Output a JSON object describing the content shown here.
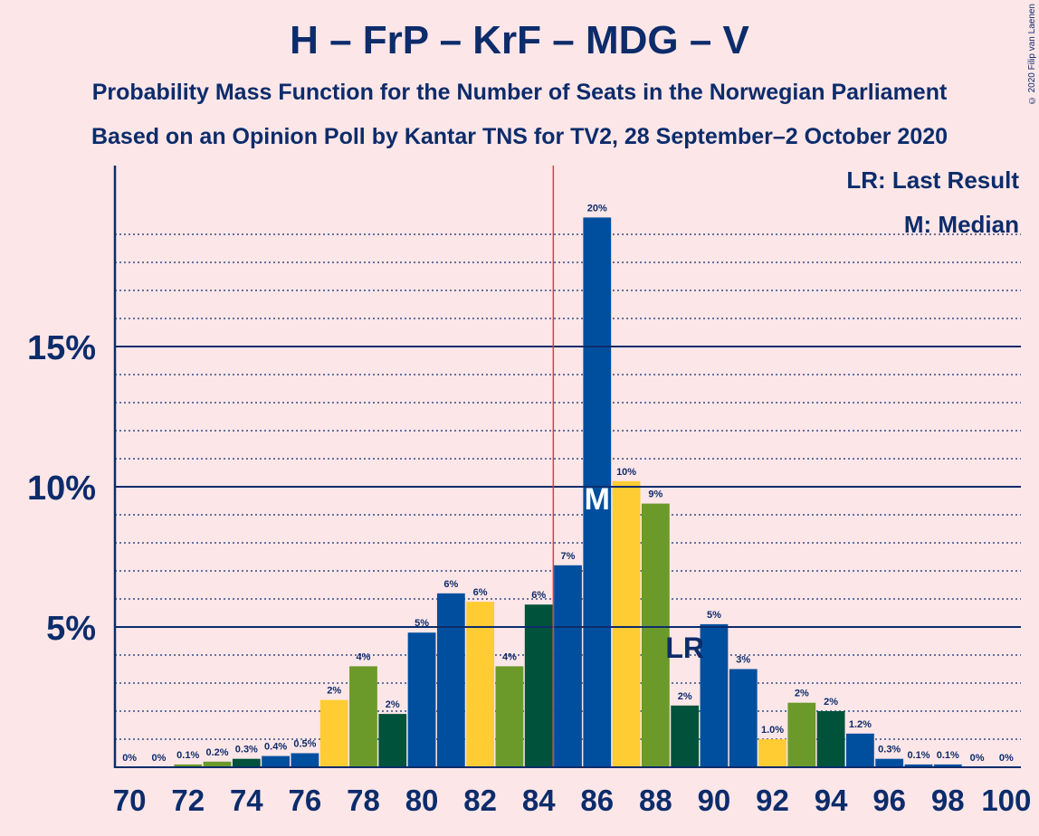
{
  "title": "H – FrP – KrF – MDG – V",
  "subtitle1": "Probability Mass Function for the Number of Seats in the Norwegian Parliament",
  "subtitle2": "Based on an Opinion Poll by Kantar TNS for TV2, 28 September–2 October 2020",
  "copyright": "© 2020 Filip van Laenen",
  "legend": {
    "lr": "LR: Last Result",
    "median": "M: Median"
  },
  "markers": {
    "median_label": "M",
    "last_result_label": "LR"
  },
  "colors": {
    "background": "#fde6e8",
    "navy": "#0c2c6b",
    "blue": "#004f9e",
    "yellow": "#ffcc33",
    "green": "#6b9a2a",
    "darkgreen": "#00523a",
    "majority_line": "#e8383d"
  },
  "chart_data": {
    "type": "bar",
    "x": [
      70,
      71,
      72,
      73,
      74,
      75,
      76,
      77,
      78,
      79,
      80,
      81,
      82,
      83,
      84,
      85,
      86,
      87,
      88,
      89,
      90,
      91,
      92,
      93,
      94,
      95,
      96,
      97,
      98,
      99,
      100
    ],
    "values": [
      0,
      0,
      0.1,
      0.2,
      0.3,
      0.4,
      0.5,
      2.4,
      3.6,
      1.9,
      4.8,
      6.2,
      5.9,
      3.6,
      5.8,
      7.2,
      19.6,
      10.2,
      9.4,
      2.2,
      5.1,
      3.5,
      1.0,
      2.3,
      2.0,
      1.2,
      0.3,
      0.1,
      0.1,
      0,
      0
    ],
    "bar_colors": [
      "blue",
      "blue",
      "green",
      "green",
      "darkgreen",
      "blue",
      "blue",
      "yellow",
      "green",
      "darkgreen",
      "blue",
      "blue",
      "yellow",
      "green",
      "darkgreen",
      "blue",
      "blue",
      "yellow",
      "green",
      "darkgreen",
      "blue",
      "blue",
      "yellow",
      "green",
      "darkgreen",
      "blue",
      "blue",
      "blue",
      "blue",
      "blue",
      "blue"
    ],
    "labels": [
      "0%",
      "0%",
      "0.1%",
      "0.2%",
      "0.3%",
      "0.4%",
      "0.5%",
      "2%",
      "4%",
      "2%",
      "5%",
      "6%",
      "6%",
      "4%",
      "6%",
      "7%",
      "20%",
      "10%",
      "9%",
      "2%",
      "5%",
      "3%",
      "1.0%",
      "2%",
      "2%",
      "1.2%",
      "0.3%",
      "0.1%",
      "0.1%",
      "0%",
      "0%"
    ],
    "x_ticks": [
      "70",
      "72",
      "74",
      "76",
      "78",
      "80",
      "82",
      "84",
      "86",
      "88",
      "90",
      "92",
      "94",
      "96",
      "98",
      "100"
    ],
    "y_ticks": [
      "5%",
      "10%",
      "15%"
    ],
    "y_tick_values": [
      5,
      10,
      15
    ],
    "ylim": [
      0,
      21.5
    ],
    "majority_line_x": 84.5,
    "median_x": 86,
    "last_result_x": 89
  }
}
